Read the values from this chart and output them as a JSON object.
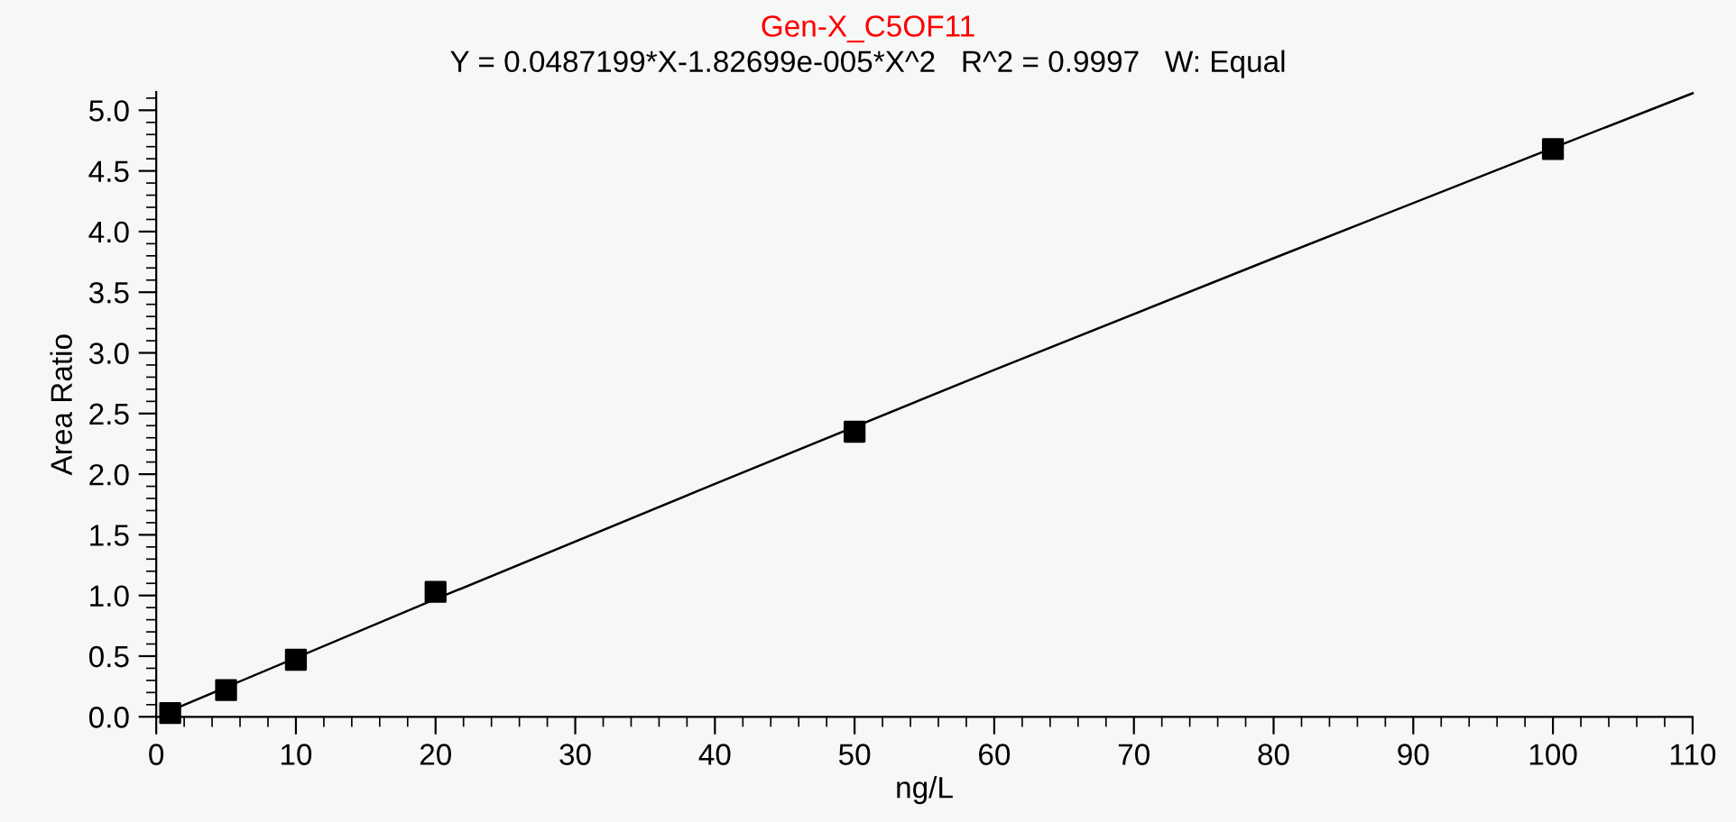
{
  "chart_data": {
    "type": "scatter",
    "title": "Gen-X_C5OF11",
    "subtitle": "Y = 0.0487199*X-1.82699e-005*X^2   R^2 = 0.9997   W: Equal",
    "xlabel": "ng/L",
    "ylabel": "Area Ratio",
    "series": [
      {
        "color": "#000000",
        "marker": "square",
        "x": [
          1,
          5,
          10,
          20,
          50,
          100
        ],
        "values": [
          0.03,
          0.22,
          0.47,
          1.03,
          2.35,
          4.68
        ]
      },
      {
        "type": "line",
        "color": "#000000",
        "marker": "none",
        "line_style": "solid",
        "x": [
          1,
          20,
          40,
          60,
          80,
          100,
          110
        ],
        "values": [
          0.05,
          0.97,
          1.92,
          2.86,
          3.78,
          4.69,
          5.14
        ]
      }
    ],
    "xlim": [
      0,
      110
    ],
    "ylim": [
      0,
      5.15
    ],
    "xticks": [
      0,
      10,
      20,
      30,
      40,
      50,
      60,
      70,
      80,
      90,
      100,
      110
    ],
    "yticks": [
      {
        "value": 0,
        "label": "0.0"
      },
      {
        "value": 0.5,
        "label": "0.5"
      },
      {
        "value": 1,
        "label": "1.0"
      },
      {
        "value": 1.5,
        "label": "1.5"
      },
      {
        "value": 2,
        "label": "2.0"
      },
      {
        "value": 2.5,
        "label": "2.5"
      },
      {
        "value": 3,
        "label": "3.0"
      },
      {
        "value": 3.5,
        "label": "3.5"
      },
      {
        "value": 4,
        "label": "4.0"
      },
      {
        "value": 4.5,
        "label": "4.5"
      },
      {
        "value": 5,
        "label": "5.0"
      }
    ],
    "grid": false,
    "legend": false
  }
}
